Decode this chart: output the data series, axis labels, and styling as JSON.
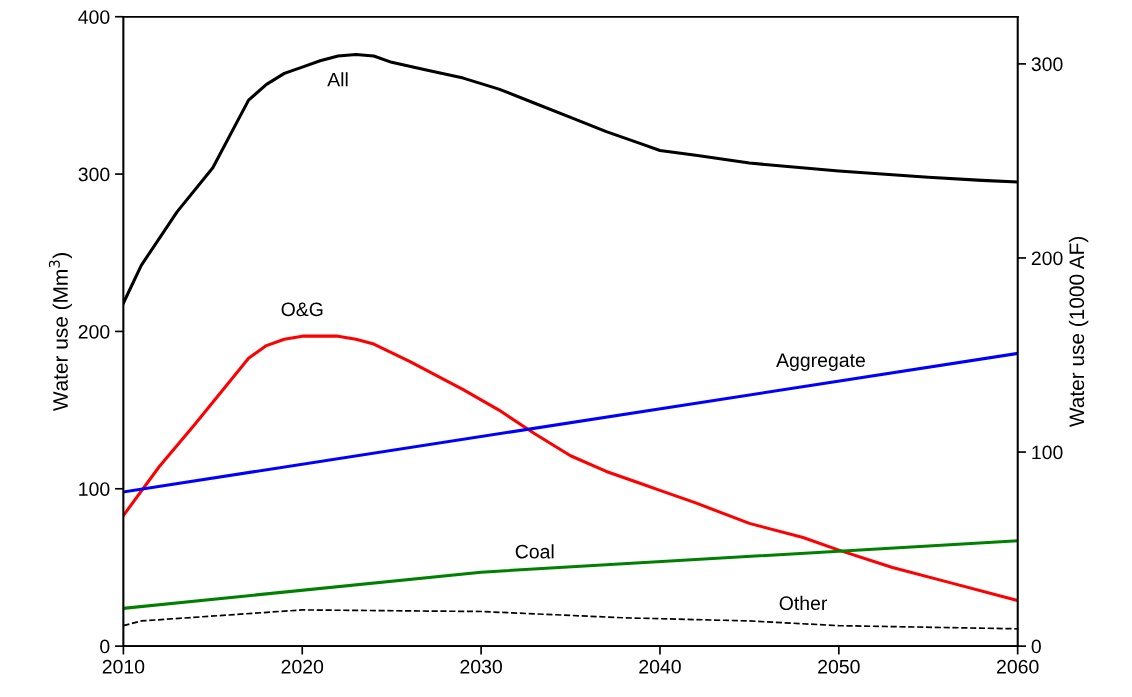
{
  "chart_data": {
    "type": "line",
    "ylabel": "Water use (Mm$^{3}$)",
    "y2label": "Water use (1000 AF)",
    "xlim": [
      2010,
      2060
    ],
    "xticks": [
      2010,
      2020,
      2030,
      2040,
      2050,
      2060
    ],
    "ylim": [
      0,
      400
    ],
    "yticks": [
      0,
      100,
      200,
      300,
      400
    ],
    "y2lim": [
      0,
      324.3
    ],
    "y2ticks": [
      0,
      100,
      200,
      300
    ],
    "grid": false,
    "legend": false,
    "series": [
      {
        "name": "All",
        "color": "#000000",
        "line_style": "solid",
        "x": [
          2010,
          2011,
          2012,
          2013,
          2015,
          2017,
          2018,
          2019,
          2020,
          2021,
          2022,
          2023,
          2024,
          2025,
          2027,
          2029,
          2031,
          2033,
          2035,
          2037,
          2039,
          2040,
          2042,
          2045,
          2050,
          2055,
          2058,
          2060
        ],
        "values": [
          218,
          242,
          259,
          276,
          304,
          347,
          357,
          364,
          368,
          372,
          375,
          376,
          375,
          371,
          366,
          361,
          354,
          345,
          336,
          327,
          319,
          315,
          312,
          307,
          302,
          298,
          296,
          295
        ]
      },
      {
        "name": "O&G",
        "color": "#ff0000",
        "line_style": "solid",
        "x": [
          2010,
          2012,
          2014,
          2017,
          2018,
          2019,
          2020,
          2021,
          2022,
          2023,
          2024,
          2026,
          2029,
          2031,
          2033,
          2035,
          2037,
          2039,
          2040,
          2042,
          2045,
          2048,
          2050,
          2053,
          2056,
          2060
        ],
        "values": [
          83,
          114,
          141,
          183,
          191,
          195,
          197,
          197,
          197,
          195,
          192,
          181,
          163,
          150,
          135,
          121,
          111,
          103,
          99,
          91,
          78,
          69,
          61,
          50,
          41,
          29
        ]
      },
      {
        "name": "Aggregate",
        "color": "#0000ff",
        "line_style": "solid",
        "x": [
          2010,
          2060
        ],
        "values": [
          98,
          186
        ]
      },
      {
        "name": "Coal",
        "color": "#008000",
        "line_style": "solid",
        "x": [
          2010,
          2030,
          2060
        ],
        "values": [
          24,
          47,
          67
        ]
      },
      {
        "name": "Other",
        "color": "#000000",
        "line_style": "dashed",
        "x": [
          2010,
          2011,
          2020,
          2030,
          2038,
          2045,
          2050,
          2060
        ],
        "values": [
          13,
          16,
          23,
          22,
          18,
          16,
          13,
          11
        ]
      }
    ]
  }
}
